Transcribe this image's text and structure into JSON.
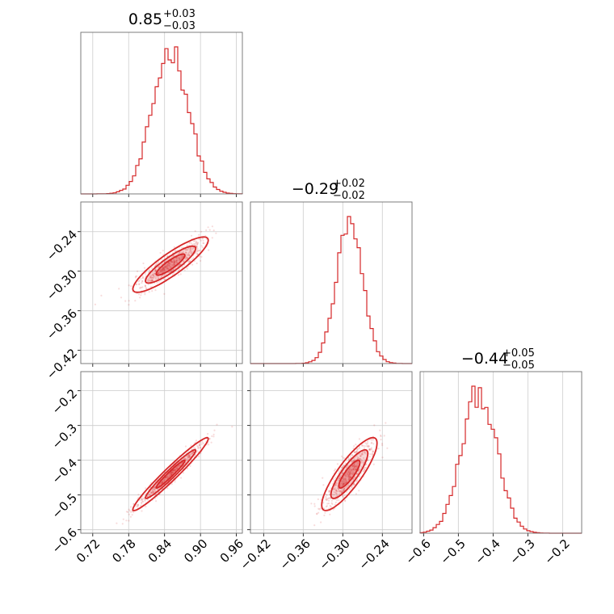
{
  "chart_data": {
    "type": "corner",
    "color": "#d62728",
    "parameters": [
      {
        "median": "0.85",
        "plus": "+0.03",
        "minus": "−0.03",
        "center": 0.85,
        "sigma": 0.03,
        "range": [
          0.7,
          0.97
        ],
        "ticks": [
          0.72,
          0.78,
          0.84,
          0.9,
          0.96
        ],
        "tick_labels": [
          "0.72",
          "0.78",
          "0.84",
          "0.90",
          "0.96"
        ]
      },
      {
        "median": "−0.29",
        "plus": "+0.02",
        "minus": "−0.02",
        "center": -0.29,
        "sigma": 0.02,
        "range": [
          -0.44,
          -0.195
        ],
        "ticks": [
          -0.42,
          -0.36,
          -0.3,
          -0.24
        ],
        "tick_labels": [
          "−0.42",
          "−0.36",
          "−0.30",
          "−0.24"
        ]
      },
      {
        "median": "−0.44",
        "plus": "+0.05",
        "minus": "−0.05",
        "center": -0.44,
        "sigma": 0.05,
        "range": [
          -0.61,
          -0.145
        ],
        "ticks": [
          -0.6,
          -0.5,
          -0.4,
          -0.3,
          -0.2
        ],
        "tick_labels": [
          "−0.6",
          "−0.5",
          "−0.4",
          "−0.3",
          "−0.2"
        ]
      }
    ],
    "correlations": {
      "1_0": 0.88,
      "2_0": 0.97,
      "2_1": 0.85
    },
    "grid": true,
    "contour_levels": 3
  }
}
